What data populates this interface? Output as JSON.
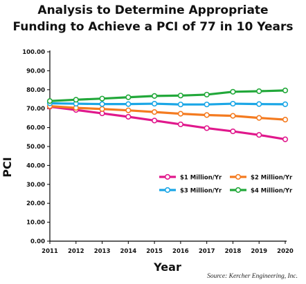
{
  "chart_data": {
    "type": "line",
    "title_lines": [
      "Analysis to Determine Appropriate",
      "Funding to Achieve a PCI of 77 in 10 Years"
    ],
    "xlabel": "Year",
    "ylabel": "PCI",
    "categories": [
      "2011",
      "2012",
      "2013",
      "2014",
      "2015",
      "2016",
      "2017",
      "2018",
      "2019",
      "2020"
    ],
    "ylim": [
      0,
      100
    ],
    "yticks": [
      "0.00",
      "10.00",
      "20.00",
      "30.00",
      "40.00",
      "50.00",
      "60.00",
      "70.00",
      "80.00",
      "90.00",
      "100.00"
    ],
    "grid": false,
    "legend_position": "middle-right",
    "series": [
      {
        "name": "$1 Million/Yr",
        "color": "#e0188c",
        "values": [
          71.0,
          69.3,
          67.5,
          65.7,
          63.7,
          61.7,
          59.7,
          58.0,
          56.1,
          53.8
        ]
      },
      {
        "name": "$2 Million/Yr",
        "color": "#f47b20",
        "values": [
          71.3,
          70.4,
          69.8,
          69.1,
          68.2,
          67.3,
          66.6,
          66.2,
          65.1,
          64.2
        ]
      },
      {
        "name": "$3 Million/Yr",
        "color": "#1aa6e6",
        "values": [
          72.8,
          72.6,
          72.4,
          72.4,
          72.6,
          72.2,
          72.2,
          72.6,
          72.4,
          72.3
        ]
      },
      {
        "name": "$4 Million/Yr",
        "color": "#22a83a",
        "values": [
          74.0,
          74.7,
          75.3,
          76.0,
          76.7,
          76.9,
          77.4,
          78.9,
          79.2,
          79.6
        ]
      }
    ]
  },
  "source": "Source: Kercher Engineering, Inc."
}
